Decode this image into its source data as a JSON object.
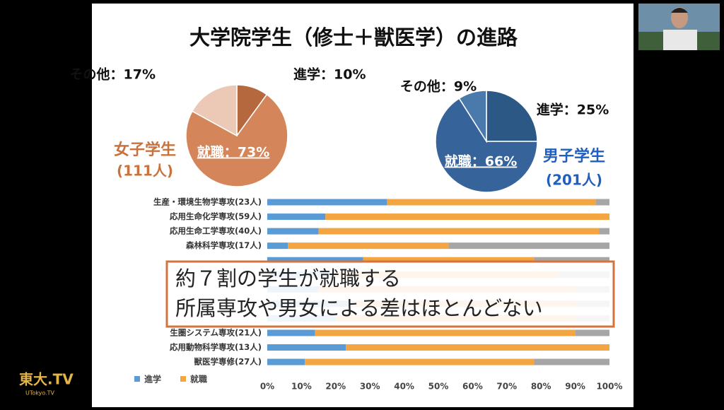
{
  "title": "大学院学生（修士＋獣医学）の進路",
  "chart_data": [
    {
      "type": "pie",
      "title": "女子学生",
      "subtitle": "(111人)",
      "title_color": "#c8733e",
      "values": [
        10,
        73,
        17
      ],
      "value_labels": [
        "進学：10%",
        "就職：73%",
        "その他：17%"
      ],
      "colors": [
        "#b5673d",
        "#d4865a",
        "#ebc9b6"
      ]
    },
    {
      "type": "pie",
      "title": "男子学生",
      "subtitle": "(201人)",
      "title_color": "#1f5fbf",
      "values": [
        25,
        66,
        9
      ],
      "value_labels": [
        "進学：25%",
        "就職：66%",
        "その他：9%"
      ],
      "colors": [
        "#2c5886",
        "#36649a",
        "#4a79ab"
      ]
    },
    {
      "type": "bar",
      "orientation": "horizontal",
      "stacked": true,
      "categories": [
        "生産・環境生物学専攻(23人)",
        "応用生命化学専攻(59人)",
        "応用生命工学専攻(40人)",
        "森林科学専攻(17人)",
        null,
        null,
        null,
        null,
        null,
        "生圏システム専攻(21人)",
        "応用動物科学専攻(13人)",
        "獣医学専修(27人)"
      ],
      "series": [
        {
          "name": "進学",
          "color": "#5b9bd5",
          "values": [
            35,
            17,
            15,
            6,
            28,
            20,
            15,
            25,
            20,
            14,
            23,
            11
          ]
        },
        {
          "name": "就職",
          "color": "#f2a541",
          "values": [
            61,
            83,
            82,
            47,
            50,
            65,
            75,
            65,
            70,
            76,
            77,
            67
          ]
        },
        {
          "color": "#a6a6a6",
          "values": [
            4,
            0,
            3,
            47,
            22,
            15,
            10,
            10,
            10,
            10,
            0,
            22
          ]
        }
      ],
      "xlim": [
        0,
        100
      ],
      "xticks": [
        {
          "value": 0,
          "label": "0%"
        },
        {
          "value": 10,
          "label": "10%"
        },
        {
          "value": 20,
          "label": "20%"
        },
        {
          "value": 30,
          "label": "30%"
        },
        {
          "value": 40,
          "label": "40%"
        },
        {
          "value": 50,
          "label": "50%"
        },
        {
          "value": 60,
          "label": "60%"
        },
        {
          "value": 70,
          "label": "70%"
        },
        {
          "value": 80,
          "label": "80%"
        },
        {
          "value": 90,
          "label": "90%"
        },
        {
          "value": 100,
          "label": "100%"
        }
      ],
      "grid": false
    }
  ],
  "overlay": {
    "lines": [
      "約７割の学生が就職する",
      "所属専攻や男女による差はほとんどない"
    ]
  },
  "logo": {
    "text": "東大.TV",
    "subtext": "UTokyo.TV"
  }
}
